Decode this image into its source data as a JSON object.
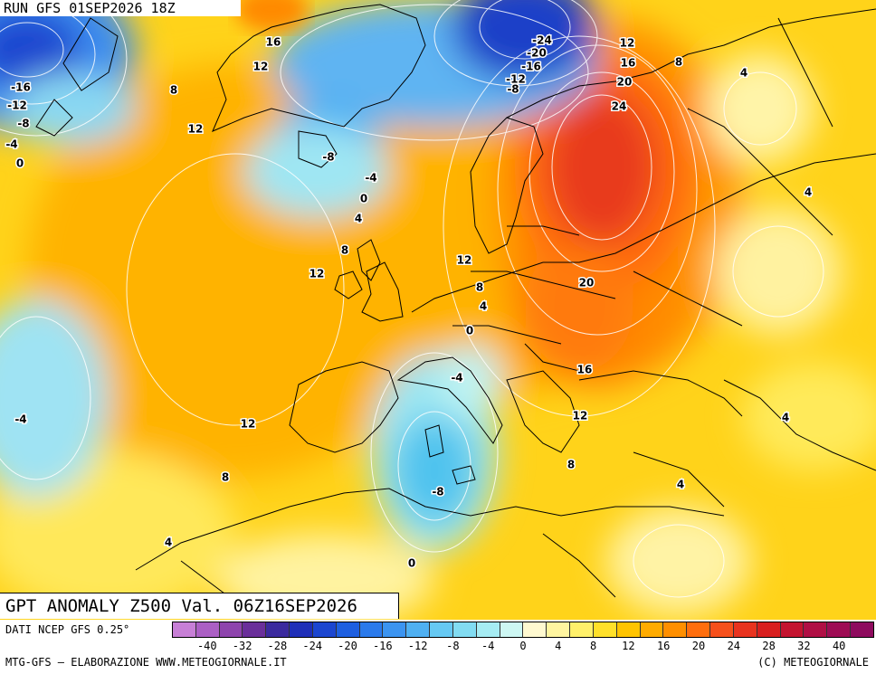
{
  "run_label": "RUN GFS 01SEP2026 18Z",
  "title": "GPT ANOMALY Z500 Val. 06Z16SEP2026",
  "source": "DATI NCEP GFS 0.25°",
  "credit_left": "MTG-GFS — ELABORAZIONE WWW.METEOGIORNALE.IT",
  "credit_right": "(C) METEOGIORNALE",
  "legend": {
    "colors": [
      "#c77fd6",
      "#ab5fc4",
      "#8e44ad",
      "#6a2f9a",
      "#3b2a9e",
      "#1f2fb8",
      "#1c46d0",
      "#1e5fe0",
      "#2b7aeb",
      "#3c94f0",
      "#4fb0f2",
      "#66c9f3",
      "#82dcf2",
      "#a6ecf3",
      "#cdf7f3",
      "#fff9d0",
      "#fff5a0",
      "#fff06a",
      "#ffe02a",
      "#ffc400",
      "#ffab00",
      "#ff8f00",
      "#ff6e0e",
      "#f6501c",
      "#e8331f",
      "#d81f1f",
      "#c41430",
      "#b00f45",
      "#9e0c54",
      "#8e0b5e"
    ],
    "ticks": [
      "-40",
      "-32",
      "-28",
      "-24",
      "-20",
      "-16",
      "-12",
      "-8",
      "-4",
      "0",
      "4",
      "8",
      "12",
      "16",
      "20",
      "24",
      "28",
      "32",
      "40"
    ]
  },
  "contour_labels": [
    {
      "text": "16"
    },
    {
      "text": "12"
    },
    {
      "text": "8"
    },
    {
      "text": "12"
    },
    {
      "text": "-16"
    },
    {
      "text": "-12"
    },
    {
      "text": "-8"
    },
    {
      "text": "-4"
    },
    {
      "text": "0"
    },
    {
      "text": "-24"
    },
    {
      "text": "-20"
    },
    {
      "text": "-16"
    },
    {
      "text": "-12"
    },
    {
      "text": "-8"
    },
    {
      "text": "12"
    },
    {
      "text": "16"
    },
    {
      "text": "20"
    },
    {
      "text": "24"
    },
    {
      "text": "8"
    },
    {
      "text": "4"
    },
    {
      "text": "-8"
    },
    {
      "text": "-4"
    },
    {
      "text": "0"
    },
    {
      "text": "4"
    },
    {
      "text": "8"
    },
    {
      "text": "12"
    },
    {
      "text": "12"
    },
    {
      "text": "8"
    },
    {
      "text": "4"
    },
    {
      "text": "0"
    },
    {
      "text": "20"
    },
    {
      "text": "-4"
    },
    {
      "text": "16"
    },
    {
      "text": "12"
    },
    {
      "text": "8"
    },
    {
      "text": "-8"
    },
    {
      "text": "4"
    },
    {
      "text": "4"
    },
    {
      "text": "-4"
    },
    {
      "text": "12"
    },
    {
      "text": "8"
    },
    {
      "text": "4"
    },
    {
      "text": "0"
    },
    {
      "text": "4"
    }
  ]
}
